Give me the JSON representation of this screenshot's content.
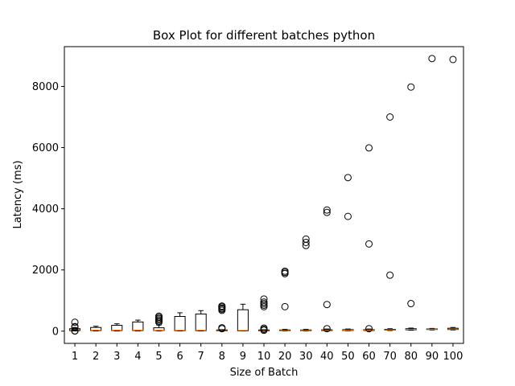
{
  "chart_data": {
    "type": "box",
    "title": "Box Plot for different batches python",
    "xlabel": "Size of Batch",
    "ylabel": "Latency (ms)",
    "ylim": [
      -400,
      9300
    ],
    "yticks": [
      0,
      2000,
      4000,
      6000,
      8000
    ],
    "grid": false,
    "median_color": "#ff7f0e",
    "box_color": "#000000",
    "categories": [
      "1",
      "2",
      "3",
      "4",
      "5",
      "6",
      "7",
      "8",
      "9",
      "10",
      "20",
      "30",
      "40",
      "50",
      "60",
      "70",
      "80",
      "90",
      "100"
    ],
    "boxes": [
      {
        "category": "1",
        "whislo": 5,
        "q1": 20,
        "med": 40,
        "q3": 80,
        "whishi": 120,
        "fliers": [
          290,
          150,
          130,
          10,
          5
        ]
      },
      {
        "category": "2",
        "whislo": 5,
        "q1": 20,
        "med": 35,
        "q3": 120,
        "whishi": 160,
        "fliers": []
      },
      {
        "category": "3",
        "whislo": 5,
        "q1": 20,
        "med": 35,
        "q3": 190,
        "whishi": 240,
        "fliers": []
      },
      {
        "category": "4",
        "whislo": 5,
        "q1": 20,
        "med": 35,
        "q3": 300,
        "whishi": 360,
        "fliers": []
      },
      {
        "category": "5",
        "whislo": 5,
        "q1": 20,
        "med": 30,
        "q3": 110,
        "whishi": 200,
        "fliers": [
          290,
          330,
          370,
          410,
          450,
          490
        ]
      },
      {
        "category": "6",
        "whislo": 5,
        "q1": 15,
        "med": 30,
        "q3": 480,
        "whishi": 600,
        "fliers": []
      },
      {
        "category": "7",
        "whislo": 5,
        "q1": 15,
        "med": 30,
        "q3": 560,
        "whishi": 670,
        "fliers": []
      },
      {
        "category": "8",
        "whislo": 5,
        "q1": 10,
        "med": 20,
        "q3": 40,
        "whishi": 50,
        "fliers": [
          820,
          790,
          750,
          720,
          680,
          110,
          80
        ]
      },
      {
        "category": "9",
        "whislo": 5,
        "q1": 10,
        "med": 25,
        "q3": 700,
        "whishi": 880,
        "fliers": []
      },
      {
        "category": "10",
        "whislo": 5,
        "q1": 10,
        "med": 20,
        "q3": 40,
        "whishi": 50,
        "fliers": [
          1050,
          950,
          900,
          850,
          800,
          100,
          60,
          30
        ]
      },
      {
        "category": "20",
        "whislo": 5,
        "q1": 15,
        "med": 25,
        "q3": 40,
        "whishi": 60,
        "fliers": [
          1960,
          1920,
          1880,
          800
        ]
      },
      {
        "category": "30",
        "whislo": 5,
        "q1": 15,
        "med": 25,
        "q3": 40,
        "whishi": 60,
        "fliers": [
          3010,
          2900,
          2800
        ]
      },
      {
        "category": "40",
        "whislo": 5,
        "q1": 15,
        "med": 25,
        "q3": 45,
        "whishi": 70,
        "fliers": [
          3960,
          3880,
          870,
          80
        ]
      },
      {
        "category": "50",
        "whislo": 10,
        "q1": 20,
        "med": 30,
        "q3": 50,
        "whishi": 70,
        "fliers": [
          5020,
          3750
        ]
      },
      {
        "category": "60",
        "whislo": 10,
        "q1": 20,
        "med": 35,
        "q3": 50,
        "whishi": 70,
        "fliers": [
          5990,
          2850,
          80
        ]
      },
      {
        "category": "70",
        "whislo": 20,
        "q1": 35,
        "med": 45,
        "q3": 60,
        "whishi": 80,
        "fliers": [
          7000,
          1830
        ]
      },
      {
        "category": "80",
        "whislo": 30,
        "q1": 45,
        "med": 60,
        "q3": 80,
        "whishi": 100,
        "fliers": [
          7980,
          900
        ]
      },
      {
        "category": "90",
        "whislo": 40,
        "q1": 55,
        "med": 65,
        "q3": 75,
        "whishi": 90,
        "fliers": [
          8910
        ]
      },
      {
        "category": "100",
        "whislo": 40,
        "q1": 55,
        "med": 70,
        "q3": 95,
        "whishi": 120,
        "fliers": [
          8880
        ]
      }
    ]
  }
}
